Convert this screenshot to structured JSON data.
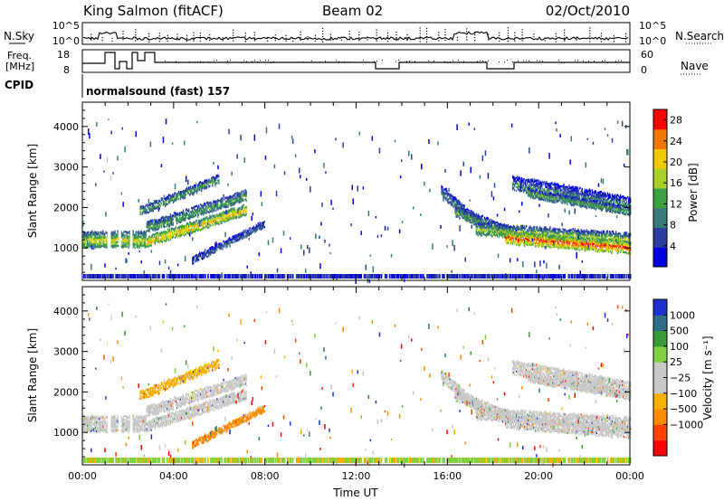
{
  "header": {
    "site": "King Salmon (fitACF)",
    "beam": "Beam 02",
    "date": "02/Oct/2010"
  },
  "top_panels": {
    "nsky_label": "N.Sky",
    "nsearch_label": "N.Search",
    "nsky_ticks": [
      "10^5",
      "10^0"
    ],
    "nsearch_ticks": [
      "10^5",
      "10^0"
    ],
    "freq_label_1": "Freq.",
    "freq_label_2": "[MHz]",
    "freq_ticks": [
      "18",
      "8"
    ],
    "nave_label": "Nave",
    "nave_ticks": [
      "60",
      "0"
    ],
    "cpid_label": "CPID",
    "cpid_text": "normalsound (fast) 157"
  },
  "colors": {
    "power_scale": [
      "#0000e0",
      "#2c3fa0",
      "#3a7a78",
      "#3aa040",
      "#a8d028",
      "#f0c800",
      "#f07800",
      "#ff0000"
    ],
    "velocity_scale": [
      "#ff0000",
      "#ff4400",
      "#ff8c00",
      "#f5b000",
      "#c8c8c8",
      "#c8c8c8",
      "#80d040",
      "#3a9a3a",
      "#2e6e88",
      "#2030d0"
    ]
  },
  "chart_data": [
    {
      "type": "heatmap",
      "name": "power-panel",
      "ylabel": "Slant Range [km]",
      "yticks": [
        "1000",
        "2000",
        "3000",
        "4000"
      ],
      "ylim": [
        200,
        4600
      ],
      "xlim": [
        0,
        24
      ],
      "colorbar_label": "Power [dB]",
      "colorbar_ticks": [
        "4",
        "8",
        "12",
        "16",
        "20",
        "24",
        "28"
      ],
      "colorbar_range": [
        0,
        30
      ]
    },
    {
      "type": "heatmap",
      "name": "velocity-panel",
      "ylabel": "Slant Range [km]",
      "yticks": [
        "1000",
        "2000",
        "3000",
        "4000"
      ],
      "ylim": [
        200,
        4600
      ],
      "xlim": [
        0,
        24
      ],
      "xlabel": "Time UT",
      "xticks": [
        "00:00",
        "04:00",
        "08:00",
        "12:00",
        "16:00",
        "20:00",
        "00:00"
      ],
      "colorbar_label": "Velocity [m s⁻¹]",
      "colorbar_ticks": [
        "1000",
        "500",
        "100",
        "25",
        "−25",
        "−100",
        "−500",
        "−1000"
      ]
    }
  ]
}
